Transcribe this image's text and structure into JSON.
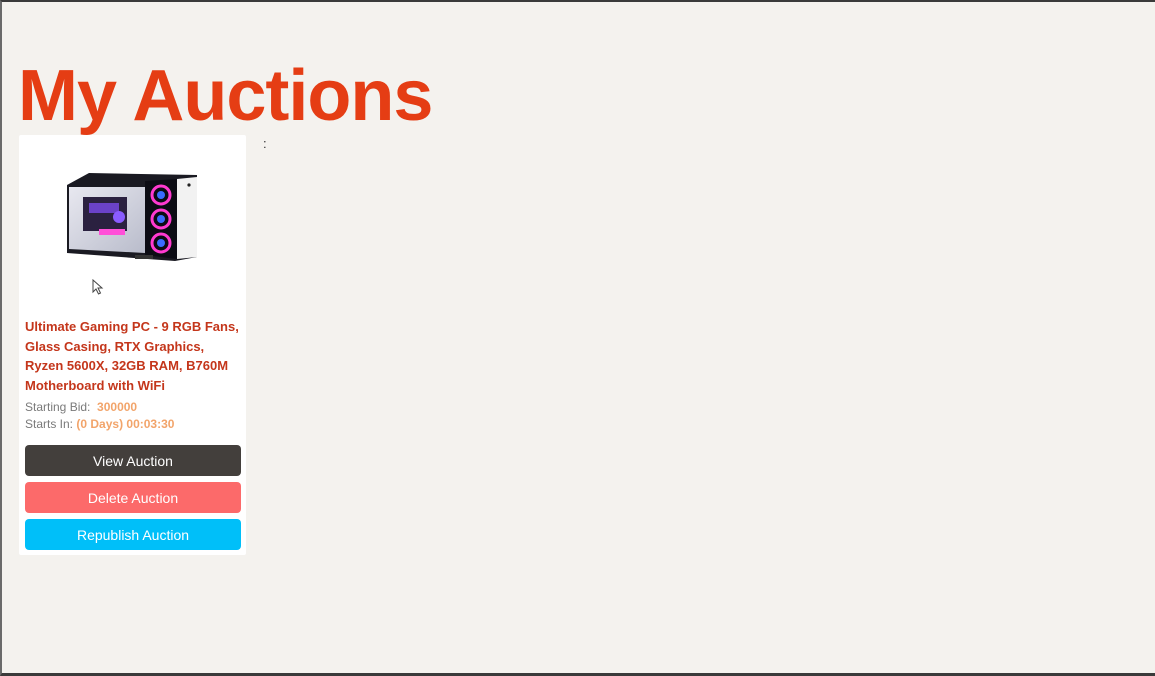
{
  "page": {
    "title": "My Auctions",
    "colon": ":"
  },
  "auction": {
    "title": "Ultimate Gaming PC - 9 RGB Fans, Glass Casing, RTX Graphics, Ryzen 5600X, 32GB RAM, B760M Motherboard with WiFi",
    "starting_bid_label": "Starting Bid:",
    "starting_bid_value": "300000",
    "starts_in_label": "Starts In:",
    "starts_in_value": "(0 Days) 00:03:30",
    "image_icon": "gaming-pc-image"
  },
  "buttons": {
    "view": "View Auction",
    "delete": "Delete Auction",
    "republish": "Republish Auction"
  },
  "colors": {
    "title": "#e53d14",
    "view_button": "#433f3c",
    "delete_button": "#fc6a6a",
    "republish_button": "#00bff9",
    "meta_value": "#f2a46a"
  }
}
